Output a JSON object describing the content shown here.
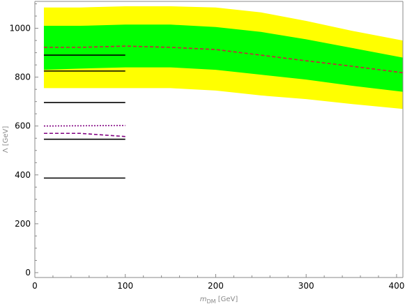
{
  "chart_data": {
    "type": "line",
    "xlabel_main": "m",
    "xlabel_sub": "DM",
    "xlabel_unit": " [GeV]",
    "ylabel": "Λ [GeV]",
    "xlim": [
      0,
      407
    ],
    "ylim": [
      -20,
      1110
    ],
    "xticks": [
      0,
      100,
      200,
      300,
      400
    ],
    "yticks": [
      0,
      200,
      400,
      600,
      800,
      1000
    ],
    "grid": false,
    "colors": {
      "band_outer": "#ffff00",
      "band_inner": "#00ff00",
      "expected_line": "#cc1f3f",
      "purple": "#800080",
      "black": "#000000"
    },
    "band_x": [
      10,
      50,
      100,
      150,
      200,
      250,
      300,
      350,
      407
    ],
    "band_outer_upper": [
      1085,
      1085,
      1090,
      1090,
      1085,
      1065,
      1030,
      990,
      950
    ],
    "band_outer_lower": [
      755,
      755,
      755,
      755,
      745,
      725,
      710,
      690,
      670
    ],
    "band_inner_upper": [
      1010,
      1010,
      1015,
      1015,
      1005,
      985,
      955,
      920,
      880
    ],
    "band_inner_lower": [
      830,
      835,
      840,
      840,
      830,
      810,
      790,
      765,
      740
    ],
    "expected": {
      "x": [
        10,
        50,
        100,
        150,
        200,
        250,
        300,
        350,
        407
      ],
      "y": [
        922,
        922,
        927,
        922,
        913,
        890,
        867,
        845,
        818
      ]
    },
    "black_lines": [
      890,
      825,
      696,
      546,
      387
    ],
    "black_lines_xrange": [
      10,
      100
    ],
    "purple_dotted": {
      "x": [
        10,
        100
      ],
      "y": [
        600,
        602
      ]
    },
    "purple_dashed": {
      "x": [
        10,
        50,
        100
      ],
      "y": [
        570,
        570,
        557
      ]
    }
  }
}
